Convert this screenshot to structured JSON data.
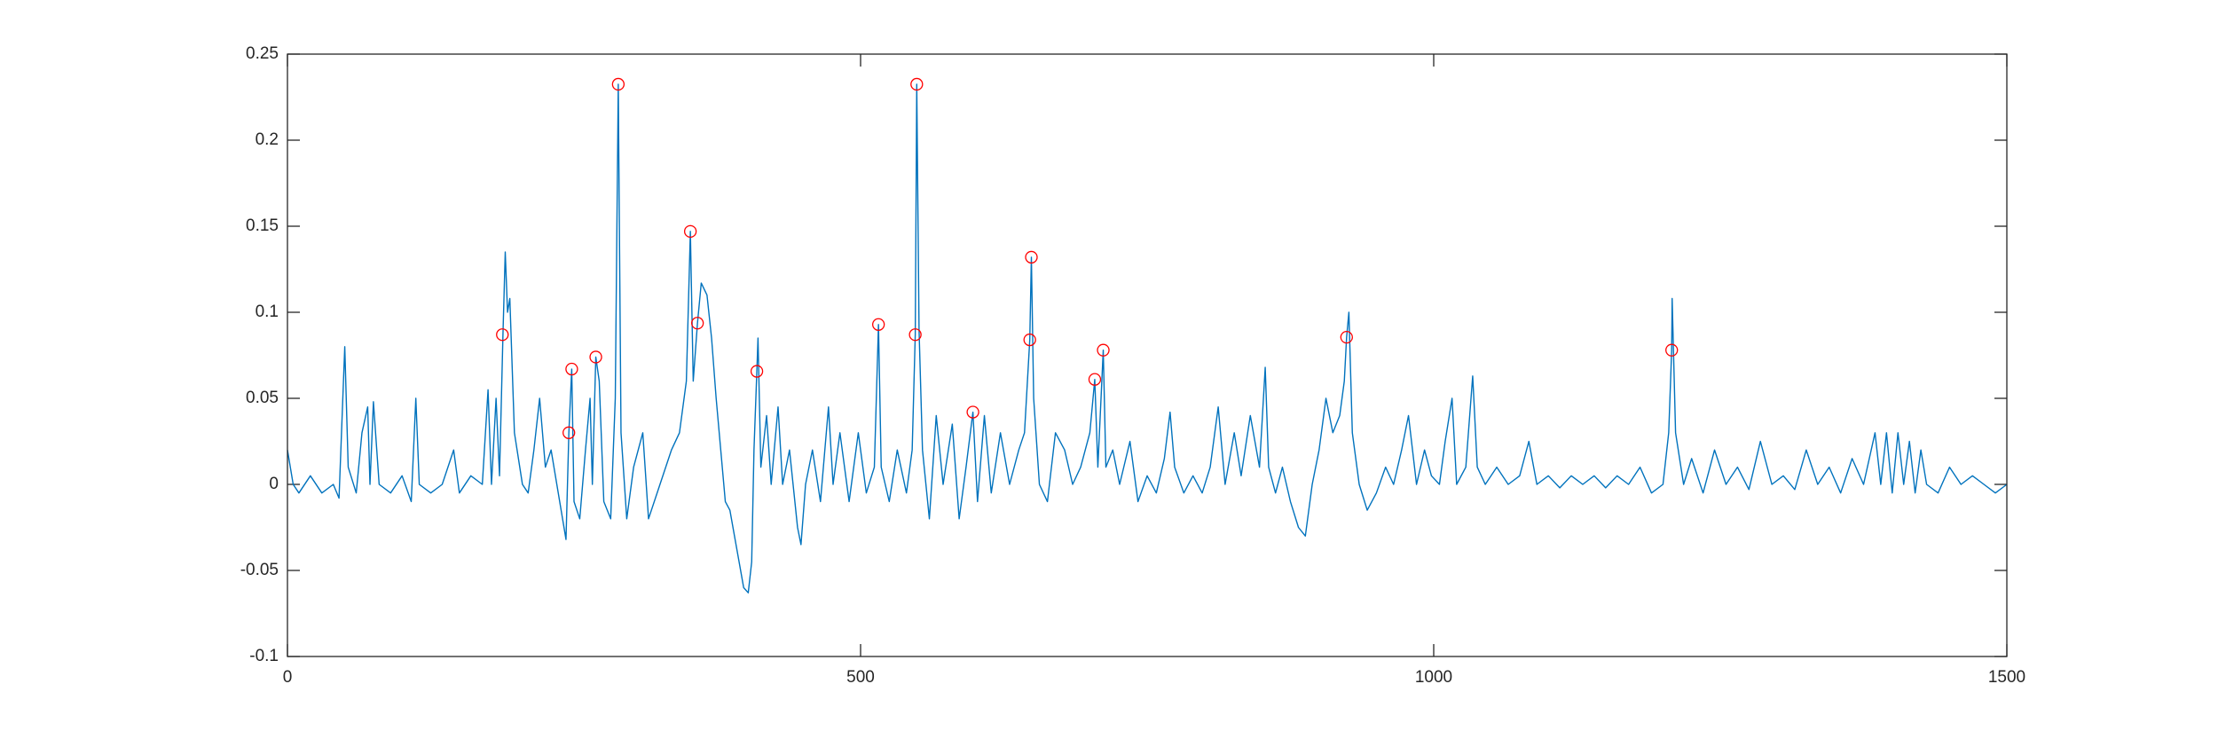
{
  "chart_data": {
    "type": "line",
    "xlim": [
      0,
      1500
    ],
    "xticks": [
      0,
      500,
      1000,
      1500
    ],
    "ylim": [
      -0.1,
      0.25
    ],
    "yticks": [
      -0.1,
      -0.05,
      0,
      0.05,
      0.1,
      0.15,
      0.2,
      0.25
    ],
    "grid": false,
    "box": true,
    "series": [
      {
        "color": "#0072bd",
        "mode": "line",
        "x": [
          0,
          5,
          10,
          20,
          30,
          40,
          45,
          50,
          53,
          60,
          65,
          70,
          72,
          75,
          80,
          90,
          100,
          108,
          112,
          115,
          125,
          135,
          145,
          150,
          160,
          170,
          175,
          178,
          182,
          185,
          188,
          190,
          192,
          194,
          198,
          205,
          210,
          215,
          220,
          225,
          230,
          235,
          240,
          243,
          245.5,
          248,
          250,
          255,
          260,
          264,
          266,
          269,
          272,
          276,
          282,
          286,
          288.6,
          291,
          296,
          302,
          310,
          315,
          325,
          335,
          342,
          348,
          351.5,
          354,
          357.7,
          361,
          366,
          370,
          374,
          378,
          382,
          386,
          390,
          394,
          398,
          402,
          405,
          407,
          409.5,
          410.5,
          413,
          418,
          422,
          428,
          432,
          438,
          445,
          448,
          452,
          458,
          465,
          472,
          476,
          482,
          490,
          498,
          505,
          512,
          515.6,
          518,
          525,
          532,
          540,
          545,
          547.7,
          549,
          551,
          554,
          560,
          566,
          572,
          580,
          586,
          592,
          598,
          602,
          608,
          614,
          622,
          630,
          638,
          643,
          647.6,
          649,
          651,
          656,
          663,
          670,
          678,
          685,
          692,
          700,
          704.3,
          707,
          711.7,
          714,
          720,
          726,
          735,
          742,
          750,
          758,
          765,
          770,
          774,
          782,
          790,
          798,
          805,
          812,
          818,
          826,
          832,
          840,
          848,
          853,
          856,
          862,
          868,
          875,
          882,
          888,
          894,
          900,
          906,
          912,
          918,
          922,
          924,
          926,
          929,
          935,
          942,
          950,
          958,
          965,
          972,
          978,
          985,
          992,
          998,
          1005,
          1010,
          1016,
          1020,
          1028,
          1034,
          1038,
          1045,
          1055,
          1065,
          1075,
          1083,
          1090,
          1100,
          1110,
          1120,
          1130,
          1140,
          1150,
          1160,
          1170,
          1180,
          1190,
          1200,
          1205,
          1207.6,
          1208,
          1211,
          1218,
          1225,
          1235,
          1245,
          1255,
          1265,
          1275,
          1285,
          1295,
          1305,
          1315,
          1325,
          1335,
          1345,
          1355,
          1365,
          1375,
          1385,
          1390,
          1395,
          1400,
          1405,
          1410,
          1415,
          1420,
          1425,
          1430,
          1440,
          1450,
          1460,
          1470,
          1480,
          1490,
          1500
        ],
        "values": [
          0.02,
          0,
          -0.005,
          0.005,
          -0.005,
          0,
          -0.008,
          0.08,
          0.01,
          -0.005,
          0.03,
          0.045,
          0,
          0.048,
          0,
          -0.005,
          0.005,
          -0.01,
          0.05,
          0,
          -0.005,
          0,
          0.02,
          -0.005,
          0.005,
          0,
          0.055,
          0,
          0.05,
          0.005,
          0.087,
          0.135,
          0.1,
          0.108,
          0.03,
          0,
          -0.005,
          0.02,
          0.05,
          0.01,
          0.02,
          0,
          -0.02,
          -0.032,
          0.03,
          0.067,
          -0.01,
          -0.02,
          0.02,
          0.05,
          0,
          0.074,
          0.06,
          -0.01,
          -0.02,
          0.05,
          0.2325,
          0.03,
          -0.02,
          0.01,
          0.03,
          -0.02,
          0,
          0.02,
          0.03,
          0.06,
          0.147,
          0.06,
          0.0937,
          0.117,
          0.11,
          0.085,
          0.05,
          0.02,
          -0.01,
          -0.015,
          -0.03,
          -0.045,
          -0.06,
          -0.063,
          -0.045,
          0.02,
          0.0657,
          0.085,
          0.01,
          0.04,
          0,
          0.045,
          0,
          0.02,
          -0.025,
          -0.035,
          0,
          0.02,
          -0.01,
          0.045,
          0,
          0.03,
          -0.01,
          0.03,
          -0.005,
          0.01,
          0.0929,
          0.01,
          -0.01,
          0.02,
          -0.005,
          0.02,
          0.087,
          0.2325,
          0.09,
          0.02,
          -0.02,
          0.04,
          0,
          0.035,
          -0.02,
          0.01,
          0.042,
          -0.01,
          0.04,
          -0.005,
          0.03,
          0,
          0.02,
          0.03,
          0.084,
          0.132,
          0.05,
          0,
          -0.01,
          0.03,
          0.02,
          0,
          0.01,
          0.03,
          0.061,
          0.01,
          0.078,
          0.01,
          0.02,
          0,
          0.025,
          -0.01,
          0.005,
          -0.005,
          0.015,
          0.042,
          0.01,
          -0.005,
          0.005,
          -0.005,
          0.01,
          0.045,
          0,
          0.03,
          0.005,
          0.04,
          0.01,
          0.068,
          0.01,
          -0.005,
          0.01,
          -0.01,
          -0.025,
          -0.03,
          0,
          0.02,
          0.05,
          0.03,
          0.04,
          0.06,
          0.0855,
          0.1,
          0.03,
          0,
          -0.015,
          -0.005,
          0.01,
          0,
          0.02,
          0.04,
          0,
          0.02,
          0.005,
          0,
          0.025,
          0.05,
          0,
          0.01,
          0.063,
          0.01,
          0,
          0.01,
          0,
          0.005,
          0.025,
          0,
          0.005,
          -0.002,
          0.005,
          0,
          0.005,
          -0.002,
          0.005,
          0,
          0.01,
          -0.005,
          0,
          0.03,
          0.078,
          0.108,
          0.03,
          0,
          0.015,
          -0.005,
          0.02,
          0,
          0.01,
          -0.003,
          0.025,
          0,
          0.005,
          -0.003,
          0.02,
          0,
          0.01,
          -0.005,
          0.015,
          0,
          0.03,
          0,
          0.03,
          -0.005,
          0.03,
          0,
          0.025,
          -0.005,
          0.02,
          0,
          -0.005,
          0.01,
          0,
          0.005,
          0,
          -0.005,
          0
        ]
      },
      {
        "color": "#ff0000",
        "mode": "markers",
        "x": [
          187.5,
          245.5,
          248,
          269,
          288.6,
          351.5,
          357.7,
          409.5,
          515.6,
          547.7,
          549,
          598,
          647.6,
          649,
          704.3,
          711.7,
          924,
          1207.6
        ],
        "values": [
          0.087,
          0.03,
          0.067,
          0.074,
          0.2325,
          0.147,
          0.0937,
          0.0657,
          0.0929,
          0.087,
          0.2325,
          0.042,
          0.084,
          0.132,
          0.061,
          0.078,
          0.0855,
          0.078
        ]
      }
    ]
  }
}
